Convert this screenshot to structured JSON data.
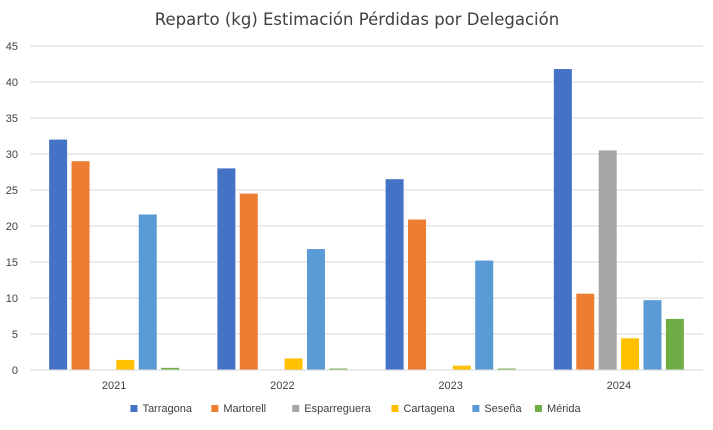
{
  "chart_data": {
    "type": "bar",
    "title": "Reparto (kg) Estimación Pérdidas por Delegación",
    "xlabel": "",
    "ylabel": "",
    "categories": [
      "2021",
      "2022",
      "2023",
      "2024"
    ],
    "ylim": [
      0,
      45
    ],
    "yticks": [
      0,
      5,
      10,
      15,
      20,
      25,
      30,
      35,
      40,
      45
    ],
    "grid": true,
    "legend_position": "bottom",
    "series": [
      {
        "name": "Tarragona",
        "color": "#4472C4",
        "values": [
          32.0,
          28.0,
          26.5,
          41.8
        ]
      },
      {
        "name": "Martorell",
        "color": "#ED7D31",
        "values": [
          29.0,
          24.5,
          20.9,
          10.6
        ]
      },
      {
        "name": "Esparreguera",
        "color": "#A5A5A5",
        "values": [
          0,
          0,
          0,
          30.5
        ]
      },
      {
        "name": "Cartagena",
        "color": "#FFC000",
        "values": [
          1.4,
          1.6,
          0.6,
          4.4
        ]
      },
      {
        "name": "Seseña",
        "color": "#5B9BD5",
        "values": [
          21.6,
          16.8,
          15.2,
          9.7
        ]
      },
      {
        "name": "Mérida",
        "color": "#70AD47",
        "values": [
          0.3,
          0.2,
          0.2,
          7.1
        ]
      }
    ]
  }
}
